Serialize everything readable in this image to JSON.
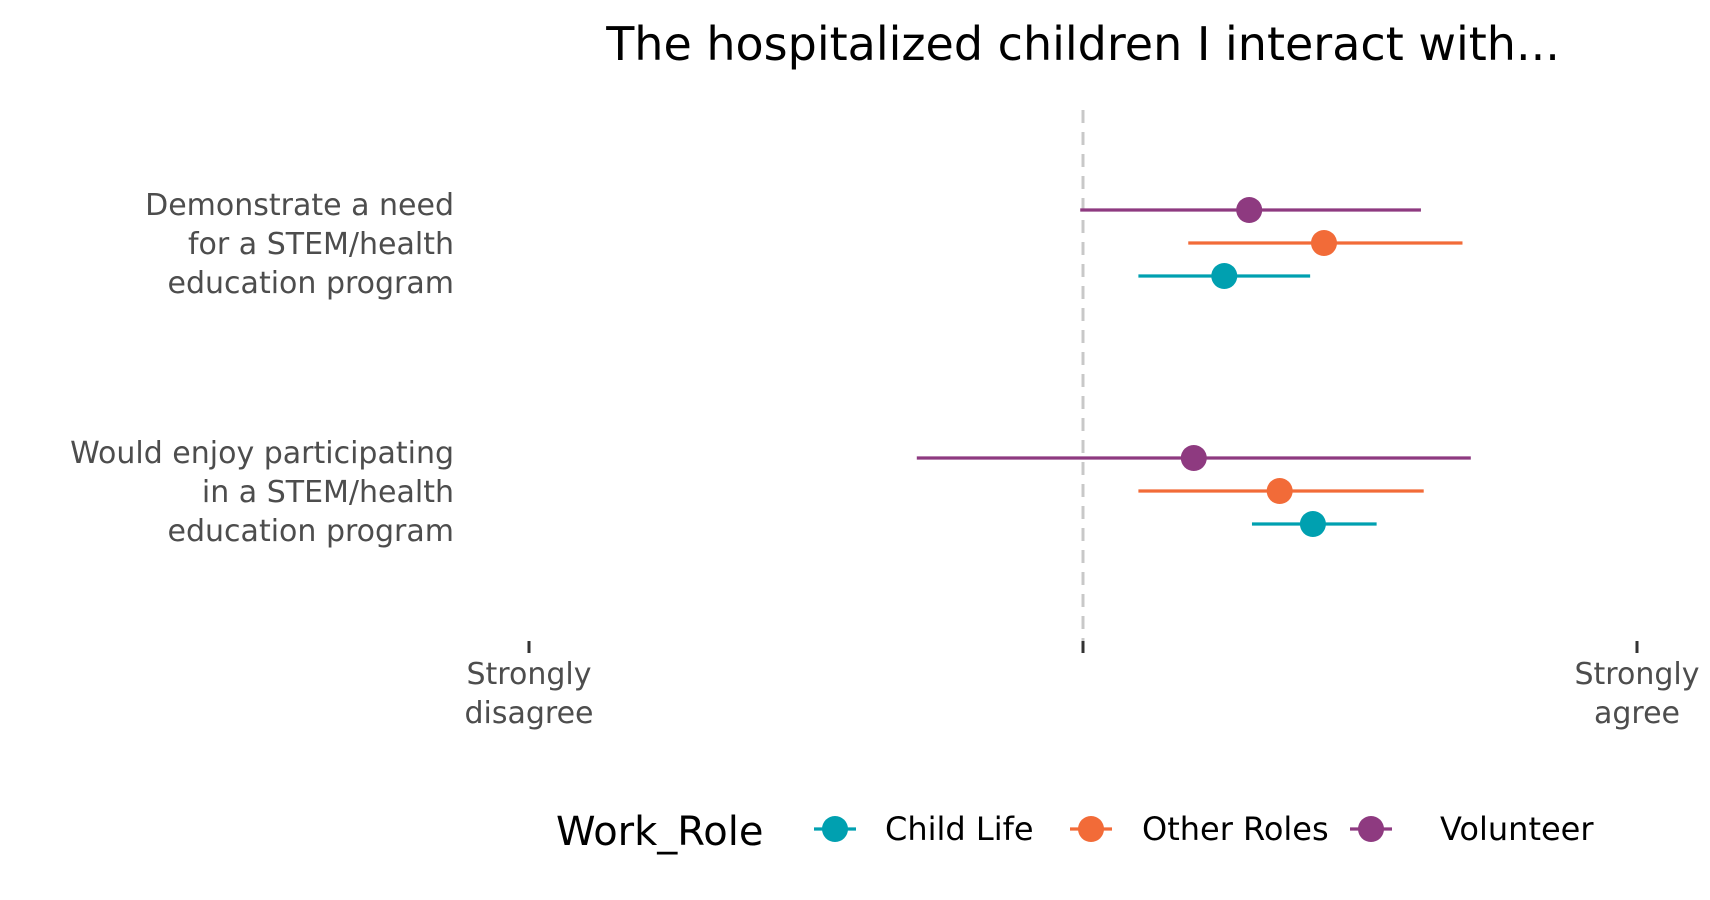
{
  "chart_data": {
    "type": "dot-errorbar",
    "title": "The hospitalized children I interact with...",
    "categories": [
      [
        "Demonstrate a need",
        "for a STEM/health",
        "education program"
      ],
      [
        "Would enjoy participating",
        "in a STEM/health",
        "education program"
      ]
    ],
    "x_scale": {
      "min": 1,
      "max": 5,
      "ticks": [
        {
          "value": 1,
          "label": [
            "Strongly",
            "disagree"
          ]
        },
        {
          "value": 3,
          "label": []
        },
        {
          "value": 5,
          "label": [
            "Strongly",
            "agree"
          ]
        }
      ],
      "reference_line": 3,
      "reference_style": "dashed"
    },
    "legend": {
      "title": "Work_Role",
      "position": "bottom"
    },
    "series": [
      {
        "name": "Child Life",
        "color": "#00A0B0",
        "points": [
          {
            "category": 0,
            "mean": 3.51,
            "low": 3.2,
            "high": 3.82
          },
          {
            "category": 1,
            "mean": 3.83,
            "low": 3.61,
            "high": 4.06
          }
        ]
      },
      {
        "name": "Other Roles",
        "color": "#F26B38",
        "points": [
          {
            "category": 0,
            "mean": 3.87,
            "low": 3.38,
            "high": 4.37
          },
          {
            "category": 1,
            "mean": 3.71,
            "low": 3.2,
            "high": 4.23
          }
        ]
      },
      {
        "name": "Volunteer",
        "color": "#8E3A80",
        "points": [
          {
            "category": 0,
            "mean": 3.6,
            "low": 2.99,
            "high": 4.22
          },
          {
            "category": 1,
            "mean": 3.4,
            "low": 2.4,
            "high": 4.4
          }
        ]
      }
    ]
  }
}
